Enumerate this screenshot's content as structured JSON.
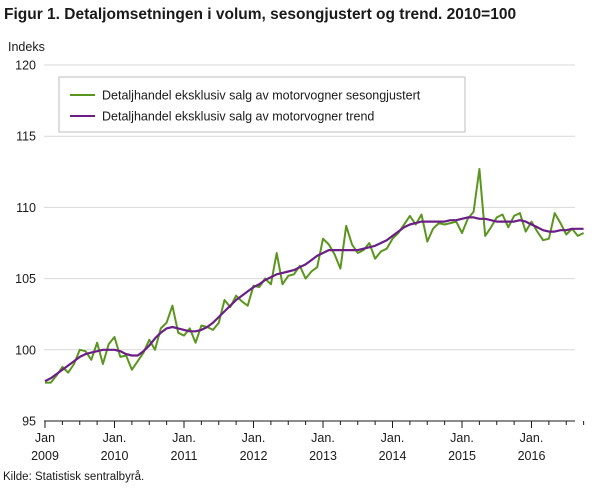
{
  "title": "Figur 1. Detaljomsetningen i volum, sesongjustert og trend. 2010=100",
  "source": "Kilde: Statistisk sentralbyrå.",
  "chart_data": {
    "type": "line",
    "ylabel": "Indeks",
    "ylim": [
      95,
      120
    ],
    "yticks": [
      95,
      100,
      105,
      110,
      115,
      120
    ],
    "grid": "horizontal",
    "legend_position": "top-left",
    "x_start": "2009-01",
    "x_end": "2016-10",
    "xticks": [
      {
        "line1": "Jan",
        "line2": "2009"
      },
      {
        "line1": "Jan.",
        "line2": "2010"
      },
      {
        "line1": "Jan.",
        "line2": "2011"
      },
      {
        "line1": "Jan.",
        "line2": "2012"
      },
      {
        "line1": "Jan.",
        "line2": "2013"
      },
      {
        "line1": "Jan.",
        "line2": "2014"
      },
      {
        "line1": "Jan.",
        "line2": "2015"
      },
      {
        "line1": "Jan.",
        "line2": "2016"
      }
    ],
    "series": [
      {
        "name": "Detaljhandel eksklusiv salg av motorvogner sesongjustert",
        "color": "#5a961e",
        "values": [
          97.7,
          97.7,
          98.2,
          98.8,
          98.4,
          99.0,
          100.0,
          99.9,
          99.3,
          100.5,
          99.0,
          100.4,
          100.9,
          99.5,
          99.6,
          98.6,
          99.2,
          99.8,
          100.7,
          100.0,
          101.5,
          101.9,
          103.1,
          101.2,
          101.0,
          101.5,
          100.5,
          101.7,
          101.6,
          101.4,
          101.9,
          103.5,
          103.0,
          103.8,
          103.4,
          103.1,
          104.5,
          104.4,
          105.0,
          104.6,
          106.8,
          104.6,
          105.2,
          105.3,
          105.9,
          105.0,
          105.5,
          105.8,
          107.8,
          107.4,
          106.7,
          105.7,
          108.7,
          107.4,
          106.8,
          107.0,
          107.5,
          106.4,
          106.9,
          107.1,
          107.8,
          108.2,
          108.8,
          109.4,
          108.8,
          109.5,
          107.6,
          108.5,
          108.9,
          108.8,
          108.9,
          109.0,
          108.2,
          109.2,
          109.7,
          112.7,
          108.0,
          108.6,
          109.3,
          109.5,
          108.6,
          109.4,
          109.6,
          108.3,
          109.0,
          108.3,
          107.7,
          107.8,
          109.6,
          108.9,
          108.1,
          108.5,
          108.0,
          108.2
        ]
      },
      {
        "name": "Detaljhandel eksklusiv salg av motorvogner trend",
        "color": "#6b1e86",
        "values": [
          97.8,
          98.0,
          98.3,
          98.6,
          98.9,
          99.2,
          99.5,
          99.7,
          99.8,
          99.9,
          100.0,
          100.0,
          100.0,
          99.9,
          99.7,
          99.6,
          99.6,
          99.9,
          100.3,
          100.8,
          101.2,
          101.5,
          101.6,
          101.5,
          101.4,
          101.3,
          101.3,
          101.4,
          101.6,
          101.9,
          102.3,
          102.7,
          103.1,
          103.5,
          103.8,
          104.1,
          104.4,
          104.6,
          104.9,
          105.1,
          105.3,
          105.4,
          105.5,
          105.6,
          105.8,
          106.0,
          106.3,
          106.6,
          106.8,
          107.0,
          107.0,
          107.0,
          107.0,
          107.0,
          107.0,
          107.1,
          107.2,
          107.3,
          107.5,
          107.7,
          108.0,
          108.3,
          108.6,
          108.8,
          108.9,
          109.0,
          109.0,
          109.0,
          109.0,
          109.0,
          109.1,
          109.1,
          109.2,
          109.3,
          109.3,
          109.2,
          109.2,
          109.1,
          109.0,
          109.0,
          109.0,
          109.0,
          109.1,
          109.0,
          108.8,
          108.6,
          108.4,
          108.3,
          108.3,
          108.4,
          108.4,
          108.5,
          108.5,
          108.5
        ]
      }
    ]
  }
}
